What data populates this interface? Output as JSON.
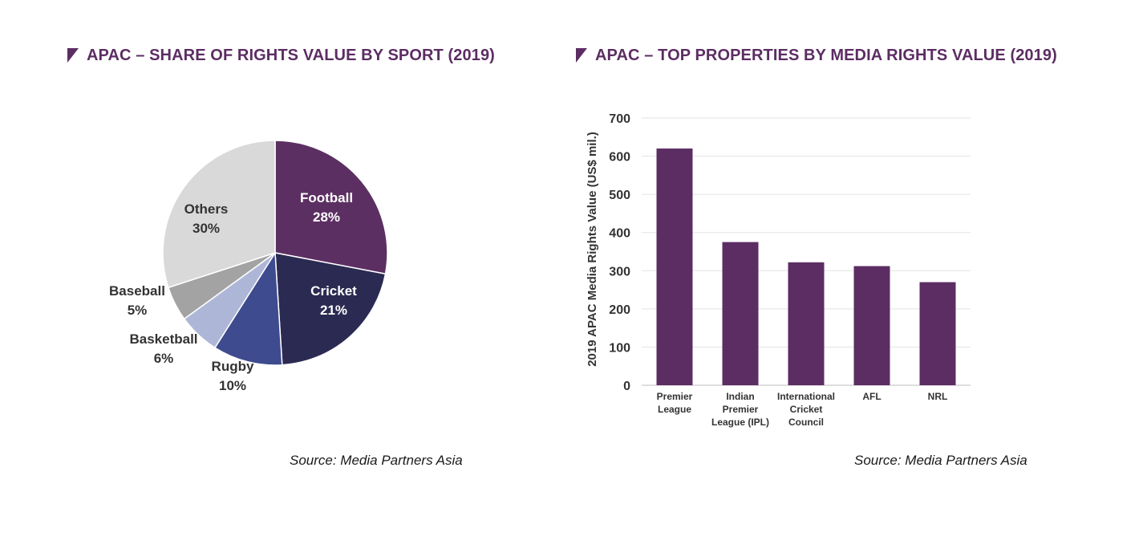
{
  "colors": {
    "title": "#5c2d63",
    "bar": "#5c2d63",
    "gridline": "#e3e3e3",
    "axis_text": "#333333"
  },
  "chart_data": [
    {
      "type": "pie",
      "title": "APAC – SHARE OF RIGHTS VALUE BY SPORT (2019)",
      "source": "Source: Media Partners Asia",
      "slices": [
        {
          "label": "Football",
          "value": 28,
          "value_label": "28%",
          "color": "#5c2f62",
          "label_color": "#ffffff"
        },
        {
          "label": "Cricket",
          "value": 21,
          "value_label": "21%",
          "color": "#2b2a52",
          "label_color": "#ffffff"
        },
        {
          "label": "Rugby",
          "value": 10,
          "value_label": "10%",
          "color": "#3e4b8f",
          "label_color": "#333333"
        },
        {
          "label": "Basketball",
          "value": 6,
          "value_label": "6%",
          "color": "#aeb6d8",
          "label_color": "#333333"
        },
        {
          "label": "Baseball",
          "value": 5,
          "value_label": "5%",
          "color": "#a3a3a3",
          "label_color": "#333333"
        },
        {
          "label": "Others",
          "value": 30,
          "value_label": "30%",
          "color": "#d9d9d9",
          "label_color": "#333333"
        }
      ]
    },
    {
      "type": "bar",
      "title": "APAC – TOP PROPERTIES BY MEDIA RIGHTS VALUE (2019)",
      "source": "Source: Media Partners Asia",
      "ylabel": "2019 APAC Media Rights Value (US$ mil.)",
      "xlabel": "",
      "ylim": [
        0,
        700
      ],
      "yticks": [
        0,
        100,
        200,
        300,
        400,
        500,
        600,
        700
      ],
      "grid": true,
      "categories": [
        [
          "Premier",
          "League"
        ],
        [
          "Indian",
          "Premier",
          "League (IPL)"
        ],
        [
          "International",
          "Cricket",
          "Council"
        ],
        [
          "AFL"
        ],
        [
          "NRL"
        ]
      ],
      "values": [
        620,
        375,
        322,
        312,
        270
      ]
    }
  ]
}
